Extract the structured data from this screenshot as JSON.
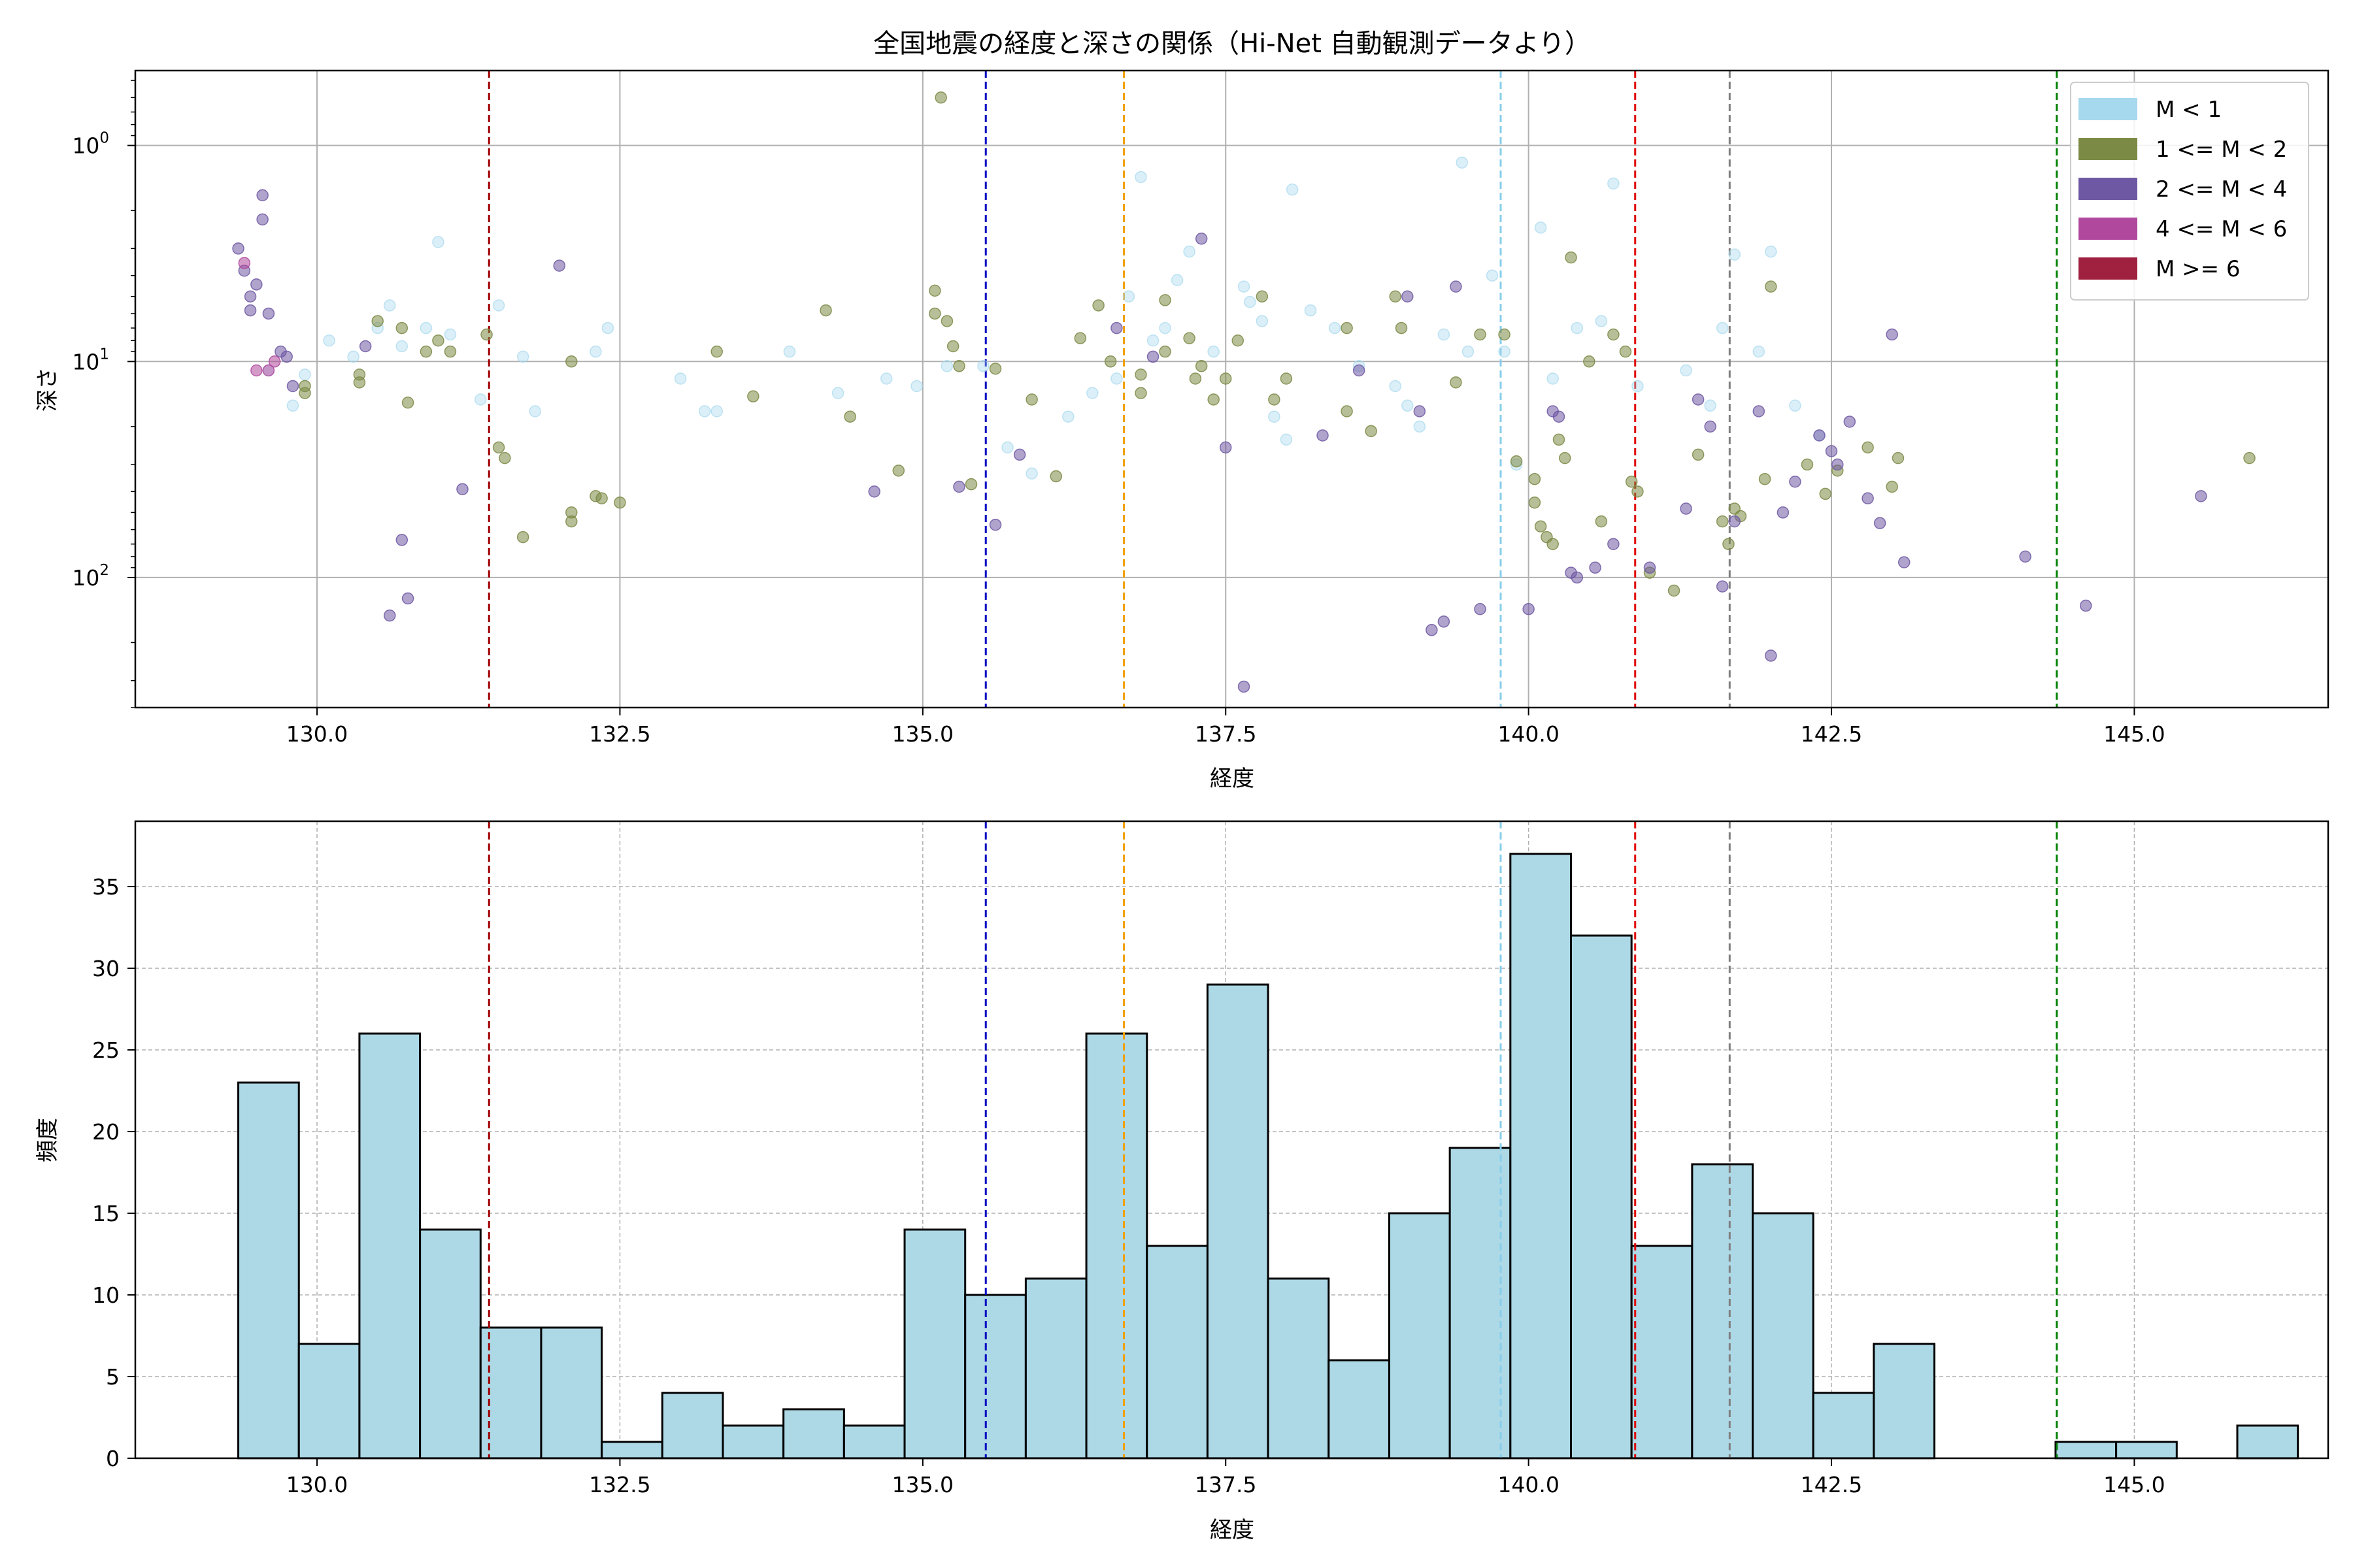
{
  "chart_data": [
    {
      "type": "scatter",
      "title": "全国地震の経度と深さの関係（Hi-Net 自動観測データより）",
      "xlabel": "経度",
      "ylabel": "深さ",
      "xlim": [
        128.5,
        146.6
      ],
      "ylim_log": [
        400,
        0.45
      ],
      "yscale": "log",
      "y_inverted": true,
      "grid": true,
      "x_ticks": [
        "130.0",
        "132.5",
        "135.0",
        "137.5",
        "140.0",
        "142.5",
        "145.0"
      ],
      "y_tick_values": [
        1,
        10,
        100
      ],
      "y_tick_base": "10",
      "y_tick_exponents": [
        "0",
        "1",
        "2"
      ],
      "legend_position": "top-right",
      "legend": [
        {
          "label": "M < 1",
          "color": "#a6d8ee"
        },
        {
          "label": "1 <= M < 2",
          "color": "#7b8a45"
        },
        {
          "label": "2 <= M < 4",
          "color": "#6f58a3"
        },
        {
          "label": "4 <= M < 6",
          "color": "#b0489d"
        },
        {
          "label": "M >= 6",
          "color": "#a0213f"
        }
      ],
      "vlines": [
        {
          "x": 131.42,
          "color": "#a00000"
        },
        {
          "x": 135.52,
          "color": "#0000c0"
        },
        {
          "x": 136.66,
          "color": "#f0a000"
        },
        {
          "x": 139.77,
          "color": "#87ceeb"
        },
        {
          "x": 140.88,
          "color": "#e00000"
        },
        {
          "x": 141.66,
          "color": "#808080"
        },
        {
          "x": 144.36,
          "color": "#008000"
        }
      ],
      "series": [
        {
          "name": "M < 1",
          "color": "#a6d8ee",
          "points": [
            [
              129.6,
              11
            ],
            [
              129.8,
              16
            ],
            [
              129.9,
              11.5
            ],
            [
              130.1,
              8
            ],
            [
              130.3,
              9.5
            ],
            [
              130.5,
              7
            ],
            [
              130.6,
              5.5
            ],
            [
              130.7,
              8.5
            ],
            [
              131.0,
              2.8
            ],
            [
              130.9,
              7
            ],
            [
              131.1,
              7.5
            ],
            [
              131.35,
              15
            ],
            [
              131.5,
              5.5
            ],
            [
              131.7,
              9.5
            ],
            [
              131.8,
              17
            ],
            [
              132.3,
              9
            ],
            [
              132.4,
              7
            ],
            [
              133.0,
              12
            ],
            [
              133.2,
              17
            ],
            [
              133.3,
              17
            ],
            [
              133.9,
              9
            ],
            [
              134.3,
              14
            ],
            [
              134.7,
              12
            ],
            [
              134.95,
              13
            ],
            [
              135.2,
              10.5
            ],
            [
              135.5,
              10.5
            ],
            [
              135.7,
              25
            ],
            [
              135.9,
              33
            ],
            [
              136.2,
              18
            ],
            [
              136.4,
              14
            ],
            [
              136.6,
              12
            ],
            [
              136.7,
              5
            ],
            [
              136.8,
              1.4
            ],
            [
              136.9,
              8
            ],
            [
              137.0,
              7
            ],
            [
              137.1,
              4.2
            ],
            [
              137.2,
              3.1
            ],
            [
              137.4,
              9
            ],
            [
              137.65,
              4.5
            ],
            [
              137.7,
              5.3
            ],
            [
              137.8,
              6.5
            ],
            [
              137.9,
              18
            ],
            [
              138.0,
              23
            ],
            [
              138.05,
              1.6
            ],
            [
              138.2,
              5.8
            ],
            [
              138.4,
              7
            ],
            [
              138.6,
              10.5
            ],
            [
              138.9,
              13
            ],
            [
              139.0,
              16
            ],
            [
              139.1,
              20
            ],
            [
              139.3,
              7.5
            ],
            [
              139.45,
              1.2
            ],
            [
              139.5,
              9
            ],
            [
              139.7,
              4
            ],
            [
              139.8,
              9
            ],
            [
              139.9,
              30
            ],
            [
              140.1,
              2.4
            ],
            [
              140.2,
              12
            ],
            [
              140.4,
              7
            ],
            [
              140.6,
              6.5
            ],
            [
              140.7,
              1.5
            ],
            [
              140.9,
              13
            ],
            [
              141.3,
              11
            ],
            [
              141.5,
              16
            ],
            [
              141.6,
              7
            ],
            [
              141.7,
              3.2
            ],
            [
              141.9,
              9
            ],
            [
              142.0,
              3.1
            ],
            [
              142.2,
              16
            ],
            [
              142.4,
              22
            ]
          ]
        },
        {
          "name": "1 <= M < 2",
          "color": "#7b8a45",
          "points": [
            [
              129.9,
              13
            ],
            [
              129.9,
              14
            ],
            [
              130.35,
              11.5
            ],
            [
              130.35,
              12.5
            ],
            [
              130.5,
              6.5
            ],
            [
              130.7,
              7
            ],
            [
              130.75,
              15.5
            ],
            [
              130.9,
              9
            ],
            [
              131.0,
              8
            ],
            [
              131.1,
              9
            ],
            [
              131.4,
              7.5
            ],
            [
              131.5,
              25
            ],
            [
              131.55,
              28
            ],
            [
              131.7,
              65
            ],
            [
              132.1,
              55
            ],
            [
              132.1,
              50
            ],
            [
              132.1,
              10
            ],
            [
              132.3,
              42
            ],
            [
              132.35,
              43
            ],
            [
              132.5,
              45
            ],
            [
              133.3,
              9
            ],
            [
              133.6,
              14.5
            ],
            [
              134.2,
              5.8
            ],
            [
              134.4,
              18
            ],
            [
              134.8,
              32
            ],
            [
              135.1,
              4.7
            ],
            [
              135.2,
              6.5
            ],
            [
              135.15,
              0.6
            ],
            [
              135.1,
              6
            ],
            [
              135.25,
              8.5
            ],
            [
              135.3,
              10.5
            ],
            [
              135.4,
              37
            ],
            [
              135.6,
              10.8
            ],
            [
              135.9,
              15
            ],
            [
              136.1,
              34
            ],
            [
              136.3,
              7.8
            ],
            [
              136.45,
              5.5
            ],
            [
              136.55,
              10
            ],
            [
              136.8,
              11.5
            ],
            [
              136.8,
              14
            ],
            [
              137.0,
              9
            ],
            [
              137.0,
              5.2
            ],
            [
              137.2,
              7.8
            ],
            [
              137.25,
              12
            ],
            [
              137.3,
              10.5
            ],
            [
              137.4,
              15
            ],
            [
              137.5,
              12
            ],
            [
              137.6,
              8
            ],
            [
              137.8,
              5
            ],
            [
              137.9,
              15
            ],
            [
              138.0,
              12
            ],
            [
              138.5,
              7
            ],
            [
              138.5,
              17
            ],
            [
              138.7,
              21
            ],
            [
              138.9,
              5
            ],
            [
              138.95,
              7
            ],
            [
              139.4,
              12.5
            ],
            [
              139.6,
              7.5
            ],
            [
              139.8,
              7.5
            ],
            [
              139.9,
              29
            ],
            [
              140.05,
              35
            ],
            [
              140.05,
              45
            ],
            [
              140.1,
              58
            ],
            [
              140.15,
              65
            ],
            [
              140.2,
              70
            ],
            [
              140.25,
              23
            ],
            [
              140.3,
              28
            ],
            [
              140.35,
              3.3
            ],
            [
              140.5,
              10
            ],
            [
              140.6,
              55
            ],
            [
              140.7,
              7.5
            ],
            [
              140.8,
              9
            ],
            [
              140.85,
              36
            ],
            [
              140.9,
              40
            ],
            [
              141.0,
              95
            ],
            [
              141.2,
              115
            ],
            [
              141.4,
              27
            ],
            [
              141.6,
              55
            ],
            [
              141.65,
              70
            ],
            [
              141.7,
              48
            ],
            [
              141.75,
              52
            ],
            [
              141.95,
              35
            ],
            [
              142.0,
              4.5
            ],
            [
              142.3,
              30
            ],
            [
              142.45,
              41
            ],
            [
              142.55,
              32
            ],
            [
              142.8,
              25
            ],
            [
              143.0,
              38
            ],
            [
              143.05,
              28
            ],
            [
              145.95,
              28
            ]
          ]
        },
        {
          "name": "2 <= M < 4",
          "color": "#6f58a3",
          "points": [
            [
              129.35,
              3
            ],
            [
              129.4,
              3.8
            ],
            [
              129.45,
              5
            ],
            [
              129.45,
              5.8
            ],
            [
              129.5,
              4.4
            ],
            [
              129.55,
              1.7
            ],
            [
              129.55,
              2.2
            ],
            [
              129.6,
              6
            ],
            [
              129.7,
              9
            ],
            [
              129.75,
              9.5
            ],
            [
              129.8,
              13
            ],
            [
              130.4,
              8.5
            ],
            [
              130.6,
              150
            ],
            [
              130.75,
              125
            ],
            [
              130.7,
              67
            ],
            [
              131.2,
              39
            ],
            [
              132.0,
              3.6
            ],
            [
              134.6,
              40
            ],
            [
              135.3,
              38
            ],
            [
              135.6,
              57
            ],
            [
              135.8,
              27
            ],
            [
              136.6,
              7
            ],
            [
              136.9,
              9.5
            ],
            [
              137.3,
              2.7
            ],
            [
              137.5,
              25
            ],
            [
              137.65,
              320
            ],
            [
              138.3,
              22
            ],
            [
              138.6,
              11
            ],
            [
              139.0,
              5
            ],
            [
              139.1,
              17
            ],
            [
              139.2,
              175
            ],
            [
              139.3,
              160
            ],
            [
              139.4,
              4.5
            ],
            [
              139.6,
              140
            ],
            [
              140.0,
              140
            ],
            [
              140.2,
              17
            ],
            [
              140.25,
              18
            ],
            [
              140.35,
              95
            ],
            [
              140.4,
              100
            ],
            [
              140.55,
              90
            ],
            [
              140.7,
              70
            ],
            [
              141.0,
              90
            ],
            [
              141.3,
              48
            ],
            [
              141.4,
              15
            ],
            [
              141.5,
              20
            ],
            [
              141.6,
              110
            ],
            [
              141.7,
              55
            ],
            [
              141.9,
              17
            ],
            [
              142.0,
              230
            ],
            [
              142.1,
              50
            ],
            [
              142.2,
              36
            ],
            [
              142.4,
              22
            ],
            [
              142.5,
              26
            ],
            [
              142.55,
              30
            ],
            [
              142.65,
              19
            ],
            [
              142.8,
              43
            ],
            [
              142.9,
              56
            ],
            [
              143.0,
              7.5
            ],
            [
              143.1,
              85
            ],
            [
              144.1,
              80
            ],
            [
              144.6,
              135
            ],
            [
              145.55,
              42
            ]
          ]
        },
        {
          "name": "4 <= M < 6",
          "color": "#b0489d",
          "points": [
            [
              129.4,
              3.5
            ],
            [
              129.5,
              11
            ],
            [
              129.6,
              11
            ],
            [
              129.65,
              10
            ]
          ]
        }
      ]
    },
    {
      "type": "bar",
      "title": "",
      "xlabel": "経度",
      "ylabel": "頻度",
      "xlim": [
        128.5,
        146.6
      ],
      "ylim": [
        0,
        39
      ],
      "grid": true,
      "x_ticks": [
        "130.0",
        "132.5",
        "135.0",
        "137.5",
        "140.0",
        "142.5",
        "145.0"
      ],
      "y_ticks": [
        "0",
        "5",
        "10",
        "15",
        "20",
        "25",
        "30",
        "35"
      ],
      "bar_color": "#add8e6",
      "bin_start": 129.35,
      "bin_width": 0.5,
      "values": [
        23,
        7,
        26,
        14,
        8,
        8,
        1,
        4,
        2,
        3,
        2,
        14,
        10,
        11,
        26,
        13,
        29,
        11,
        6,
        15,
        19,
        37,
        32,
        13,
        18,
        15,
        4,
        7,
        0,
        0,
        1,
        1,
        0,
        2
      ],
      "vlines": [
        {
          "x": 131.42,
          "color": "#a00000"
        },
        {
          "x": 135.52,
          "color": "#0000c0"
        },
        {
          "x": 136.66,
          "color": "#f0a000"
        },
        {
          "x": 139.77,
          "color": "#87ceeb"
        },
        {
          "x": 140.88,
          "color": "#e00000"
        },
        {
          "x": 141.66,
          "color": "#808080"
        },
        {
          "x": 144.36,
          "color": "#008000"
        }
      ]
    }
  ]
}
